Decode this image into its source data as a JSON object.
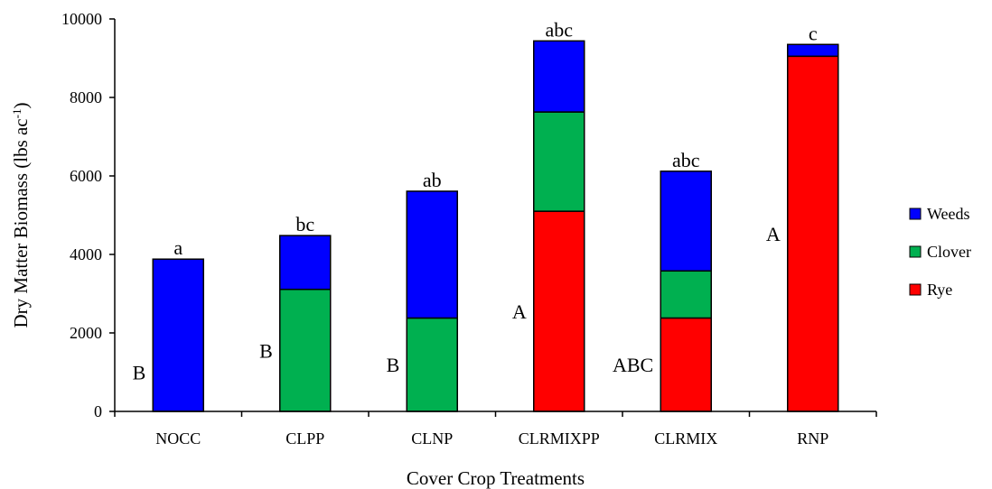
{
  "chart_data": {
    "type": "bar",
    "stacked": true,
    "title": "",
    "xlabel": "Cover Crop Treatments",
    "ylabel": "Dry Matter Biomass (lbs ac",
    "ylabel_sup": "-1",
    "ylabel_close": ")",
    "ylim": [
      0,
      10000
    ],
    "yticks": [
      0,
      2000,
      4000,
      6000,
      8000,
      10000
    ],
    "ytick_labels": [
      "0",
      "2000",
      "4000",
      "6000",
      "8000",
      "10000"
    ],
    "categories": [
      "NOCC",
      "CLPP",
      "CLNP",
      "CLRMIXPP",
      "CLRMIX",
      "RNP"
    ],
    "series": [
      {
        "name": "Rye",
        "color": "#ff0000",
        "values": [
          0,
          0,
          0,
          5100,
          2380,
          9050
        ]
      },
      {
        "name": "Clover",
        "color": "#00b050",
        "values": [
          0,
          3110,
          2380,
          2530,
          1200,
          0
        ]
      },
      {
        "name": "Weeds",
        "color": "#0000ff",
        "values": [
          3880,
          1370,
          3230,
          1810,
          2540,
          300
        ]
      }
    ],
    "legend_order": [
      "Weeds",
      "Clover",
      "Rye"
    ],
    "legend_position": "right",
    "top_letters": [
      "a",
      "bc",
      "ab",
      "abc",
      "abc",
      "c"
    ],
    "side_letters": [
      "B",
      "B",
      "B",
      "A",
      "ABC",
      "A"
    ],
    "grid": false
  }
}
